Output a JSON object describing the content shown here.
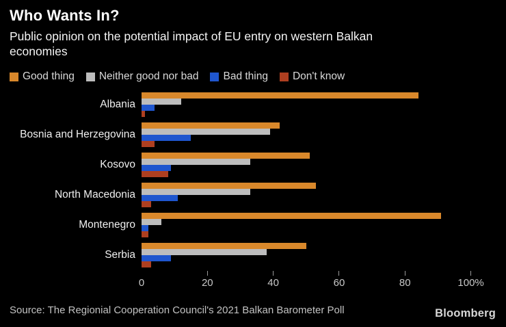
{
  "header": {
    "title": "Who Wants In?",
    "subtitle": "Public opinion on the potential impact of EU entry on western Balkan economies"
  },
  "legend": [
    {
      "label": "Good thing",
      "color": "#D9882B",
      "icon": "orange-square-swatch"
    },
    {
      "label": "Neither good nor bad",
      "color": "#BDBDBD",
      "icon": "gray-square-swatch"
    },
    {
      "label": "Bad thing",
      "color": "#1F56CE",
      "icon": "blue-square-swatch"
    },
    {
      "label": "Don't know",
      "color": "#AE3F20",
      "icon": "brick-square-swatch"
    }
  ],
  "chart_data": {
    "type": "bar",
    "orientation": "horizontal",
    "title": "Who Wants In?",
    "subtitle": "Public opinion on the potential impact of EU entry on western Balkan economies",
    "categories": [
      "Albania",
      "Bosnia and Herzegovina",
      "Kosovo",
      "North Macedonia",
      "Montenegro",
      "Serbia"
    ],
    "series": [
      {
        "name": "Good thing",
        "color": "#D9882B",
        "values": [
          84,
          42,
          51,
          53,
          91,
          50
        ]
      },
      {
        "name": "Neither good nor bad",
        "color": "#BDBDBD",
        "values": [
          12,
          39,
          33,
          33,
          6,
          38
        ]
      },
      {
        "name": "Bad thing",
        "color": "#1F56CE",
        "values": [
          4,
          15,
          9,
          11,
          2,
          9
        ]
      },
      {
        "name": "Don't know",
        "color": "#AE3F20",
        "values": [
          1,
          4,
          8,
          3,
          2,
          3
        ]
      }
    ],
    "xlabel": "",
    "ylabel": "",
    "xlim": [
      0,
      100
    ],
    "unit": "%",
    "grid": false,
    "legend_position": "top",
    "ticks": [
      {
        "value": 0,
        "label": "0"
      },
      {
        "value": 20,
        "label": "20"
      },
      {
        "value": 40,
        "label": "40"
      },
      {
        "value": 60,
        "label": "60"
      },
      {
        "value": 80,
        "label": "80"
      },
      {
        "value": 100,
        "label": "100%"
      }
    ]
  },
  "footer": {
    "source": "Source: The Regionial Cooperation Council's 2021 Balkan Barometer Poll",
    "brand": "Bloomberg"
  },
  "colors": {
    "background": "#000000",
    "title_text": "#FFFFFF",
    "axis_text": "#C8C8C8",
    "tick_mark": "#9A9A9A"
  }
}
